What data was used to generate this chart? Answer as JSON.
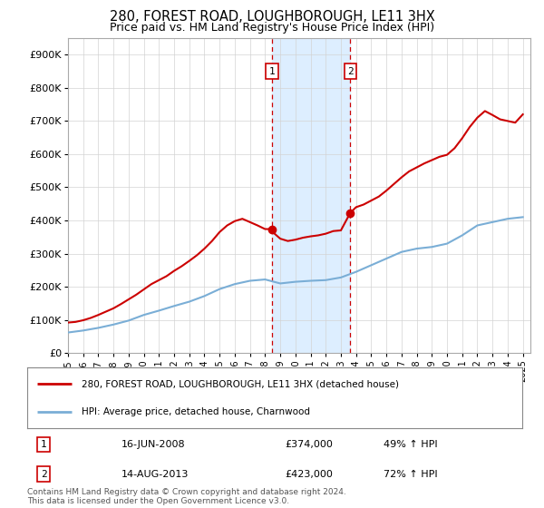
{
  "title": "280, FOREST ROAD, LOUGHBOROUGH, LE11 3HX",
  "subtitle": "Price paid vs. HM Land Registry's House Price Index (HPI)",
  "title_fontsize": 10.5,
  "subtitle_fontsize": 9,
  "xlim": [
    1995.0,
    2025.5
  ],
  "ylim": [
    0,
    950000
  ],
  "yticks": [
    0,
    100000,
    200000,
    300000,
    400000,
    500000,
    600000,
    700000,
    800000,
    900000
  ],
  "ytick_labels": [
    "£0",
    "£100K",
    "£200K",
    "£300K",
    "£400K",
    "£500K",
    "£600K",
    "£700K",
    "£800K",
    "£900K"
  ],
  "xtick_years": [
    1995,
    1996,
    1997,
    1998,
    1999,
    2000,
    2001,
    2002,
    2003,
    2004,
    2005,
    2006,
    2007,
    2008,
    2009,
    2010,
    2011,
    2012,
    2013,
    2014,
    2015,
    2016,
    2017,
    2018,
    2019,
    2020,
    2021,
    2022,
    2023,
    2024,
    2025
  ],
  "red_line_color": "#cc0000",
  "blue_line_color": "#7aaed6",
  "vline_color": "#cc0000",
  "highlight_fill": "#ddeeff",
  "sale1_year": 2008.45,
  "sale1_price": 374000,
  "sale1_label": "1",
  "sale1_date": "16-JUN-2008",
  "sale1_text": "£374,000",
  "sale1_pct": "49% ↑ HPI",
  "sale2_year": 2013.62,
  "sale2_price": 423000,
  "sale2_label": "2",
  "sale2_date": "14-AUG-2013",
  "sale2_text": "£423,000",
  "sale2_pct": "72% ↑ HPI",
  "legend_property": "280, FOREST ROAD, LOUGHBOROUGH, LE11 3HX (detached house)",
  "legend_hpi": "HPI: Average price, detached house, Charnwood",
  "footer": "Contains HM Land Registry data © Crown copyright and database right 2024.\nThis data is licensed under the Open Government Licence v3.0.",
  "hpi_years": [
    1995,
    1996,
    1997,
    1998,
    1999,
    2000,
    2001,
    2002,
    2003,
    2004,
    2005,
    2006,
    2007,
    2008,
    2009,
    2010,
    2011,
    2012,
    2013,
    2014,
    2015,
    2016,
    2017,
    2018,
    2019,
    2020,
    2021,
    2022,
    2023,
    2024,
    2025
  ],
  "hpi_values": [
    62000,
    68000,
    76000,
    86000,
    98000,
    115000,
    128000,
    142000,
    155000,
    172000,
    193000,
    208000,
    218000,
    222000,
    210000,
    215000,
    218000,
    220000,
    228000,
    245000,
    265000,
    285000,
    305000,
    315000,
    320000,
    330000,
    355000,
    385000,
    395000,
    405000,
    410000
  ],
  "prop_years": [
    1995,
    1995.5,
    1996,
    1996.5,
    1997,
    1997.5,
    1998,
    1998.5,
    1999,
    1999.5,
    2000,
    2000.5,
    2001,
    2001.5,
    2002,
    2002.5,
    2003,
    2003.5,
    2004,
    2004.5,
    2005,
    2005.5,
    2006,
    2006.5,
    2007,
    2007.5,
    2008,
    2008.45,
    2008.5,
    2009,
    2009.5,
    2010,
    2010.5,
    2011,
    2011.5,
    2012,
    2012.5,
    2013,
    2013.62,
    2014,
    2014.5,
    2015,
    2015.5,
    2016,
    2016.5,
    2017,
    2017.5,
    2018,
    2018.5,
    2019,
    2019.5,
    2020,
    2020.5,
    2021,
    2021.5,
    2022,
    2022.5,
    2023,
    2023.5,
    2024,
    2024.5,
    2025
  ],
  "prop_values": [
    92000,
    94000,
    99000,
    106000,
    115000,
    125000,
    135000,
    148000,
    162000,
    176000,
    192000,
    208000,
    220000,
    232000,
    248000,
    262000,
    278000,
    295000,
    315000,
    338000,
    365000,
    385000,
    398000,
    405000,
    395000,
    385000,
    374000,
    374000,
    365000,
    345000,
    338000,
    342000,
    348000,
    352000,
    355000,
    360000,
    368000,
    370000,
    423000,
    440000,
    448000,
    460000,
    472000,
    490000,
    510000,
    530000,
    548000,
    560000,
    572000,
    582000,
    592000,
    598000,
    618000,
    648000,
    682000,
    710000,
    730000,
    718000,
    705000,
    700000,
    695000,
    720000
  ]
}
